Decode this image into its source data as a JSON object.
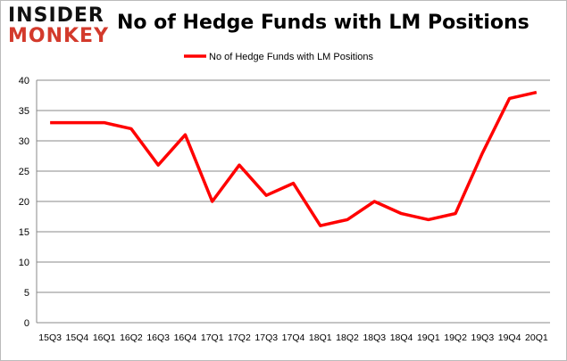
{
  "logo": {
    "line1": "INSIDER",
    "line2": "MONKEY"
  },
  "chart_data": {
    "type": "line",
    "title": "No of Hedge Funds with LM Positions",
    "xlabel": "",
    "ylabel": "",
    "categories": [
      "15Q3",
      "15Q4",
      "16Q1",
      "16Q2",
      "16Q3",
      "16Q4",
      "17Q1",
      "17Q2",
      "17Q3",
      "17Q4",
      "18Q1",
      "18Q2",
      "18Q3",
      "18Q4",
      "19Q1",
      "19Q2",
      "19Q3",
      "19Q4",
      "20Q1"
    ],
    "series": [
      {
        "name": "No of Hedge Funds with LM Positions",
        "color": "#ff0000",
        "values": [
          33,
          33,
          33,
          32,
          26,
          31,
          20,
          26,
          21,
          23,
          16,
          17,
          20,
          18,
          17,
          18,
          28,
          37,
          38
        ]
      }
    ],
    "ylim": [
      0,
      40
    ],
    "yticks": [
      0,
      5,
      10,
      15,
      20,
      25,
      30,
      35,
      40
    ],
    "grid": true,
    "legend": "top-center"
  }
}
